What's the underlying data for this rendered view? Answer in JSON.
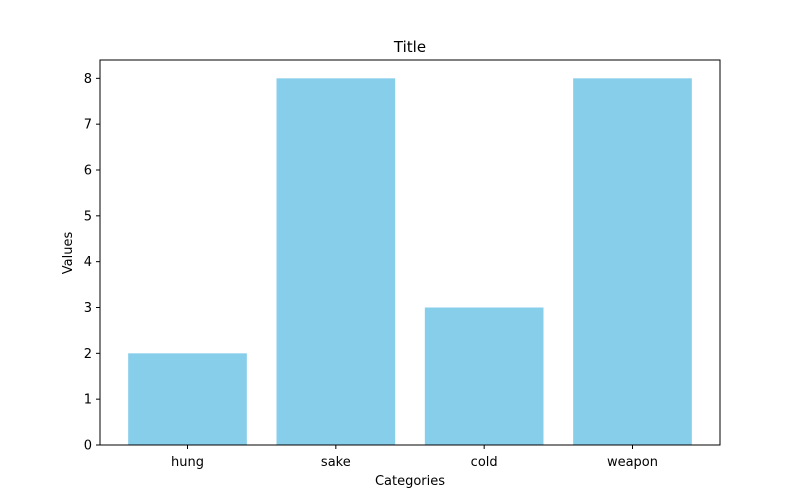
{
  "chart_data": {
    "type": "bar",
    "title": "Title",
    "xlabel": "Categories",
    "ylabel": "Values",
    "categories": [
      "hung",
      "sake",
      "cold",
      "weapon"
    ],
    "values": [
      2,
      8,
      3,
      8
    ],
    "ylim": [
      0,
      8.4
    ],
    "yticks": [
      0,
      1,
      2,
      3,
      4,
      5,
      6,
      7,
      8
    ],
    "bar_color": "#87ceeb",
    "grid": false,
    "legend": "none"
  }
}
